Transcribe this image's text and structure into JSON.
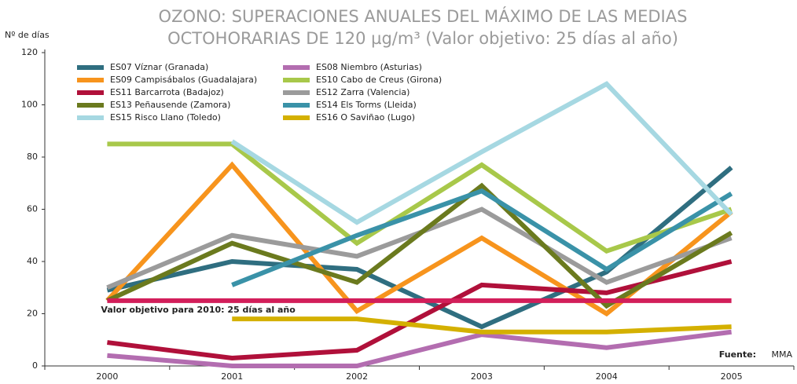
{
  "chart_data": {
    "type": "line",
    "title": [
      "OZONO: SUPERACIONES ANUALES DEL MÁXIMO DE LAS MEDIAS",
      "OCTOHORARIAS DE 120 µg/m³ (Valor objetivo: 25 días al año)"
    ],
    "y_label": "Nº de días",
    "categories": [
      "2000",
      "2001",
      "2002",
      "2003",
      "2004",
      "2005"
    ],
    "ylim": [
      0,
      120
    ],
    "yticks": [
      0,
      20,
      40,
      60,
      80,
      100,
      120
    ],
    "series": [
      {
        "name": "ES07 Víznar (Granada)",
        "color": "#2f6e80",
        "values": [
          29,
          40,
          37,
          15,
          36,
          76
        ]
      },
      {
        "name": "ES08 Niembro (Asturias)",
        "color": "#b36db0",
        "values": [
          4,
          0,
          0,
          12,
          7,
          13
        ]
      },
      {
        "name": "ES09 Campisábalos (Guadalajara)",
        "color": "#f7941d",
        "values": [
          25,
          77,
          21,
          49,
          20,
          59
        ]
      },
      {
        "name": "ES10 Cabo de Creus (Girona)",
        "color": "#a8c84a",
        "values": [
          85,
          85,
          47,
          77,
          44,
          60
        ]
      },
      {
        "name": "ES11 Barcarrota (Badajoz)",
        "color": "#b0103a",
        "values": [
          9,
          3,
          6,
          31,
          28,
          40
        ]
      },
      {
        "name": "ES12 Zarra (Valencia)",
        "color": "#9b9b9b",
        "values": [
          30,
          50,
          42,
          60,
          32,
          49
        ]
      },
      {
        "name": "ES13 Peñausende (Zamora)",
        "color": "#6b7a1e",
        "values": [
          25,
          47,
          32,
          69,
          23,
          51
        ]
      },
      {
        "name": "ES14 Els Torms (Lleida)",
        "color": "#3a92a8",
        "values": [
          null,
          31,
          50,
          67,
          37,
          66
        ]
      },
      {
        "name": "ES15 Risco Llano (Toledo)",
        "color": "#a6d8e2",
        "values": [
          null,
          86,
          55,
          82,
          108,
          58
        ]
      },
      {
        "name": "ES16 O Saviñao (Lugo)",
        "color": "#d4b000",
        "values": [
          null,
          18,
          18,
          13,
          13,
          15
        ]
      }
    ],
    "target": {
      "label": "Valor objetivo para 2010: 25 días al año",
      "value": 25,
      "color": "#d21e5a"
    },
    "source": [
      "Fuente:",
      "MMA"
    ]
  }
}
